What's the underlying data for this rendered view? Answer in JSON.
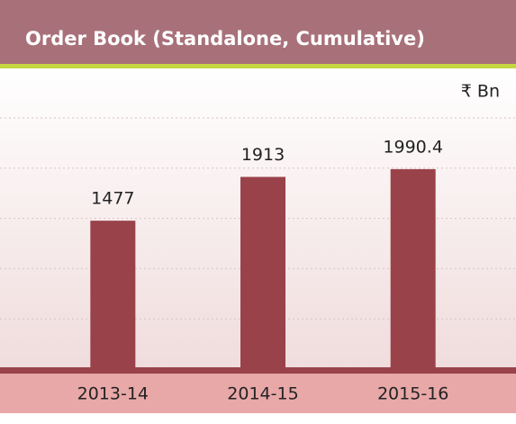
{
  "chart_data": {
    "type": "bar",
    "title": "Order Book (Standalone, Cumulative)",
    "unit": "₹ Bn",
    "categories": [
      "2013-14",
      "2014-15",
      "2015-16"
    ],
    "values": [
      1477,
      1913,
      1990.4
    ],
    "color": "#99424a",
    "ylim": [
      0,
      2500
    ],
    "yticks": [
      0,
      500,
      1000,
      1500,
      2000,
      2500
    ],
    "grid": true
  }
}
